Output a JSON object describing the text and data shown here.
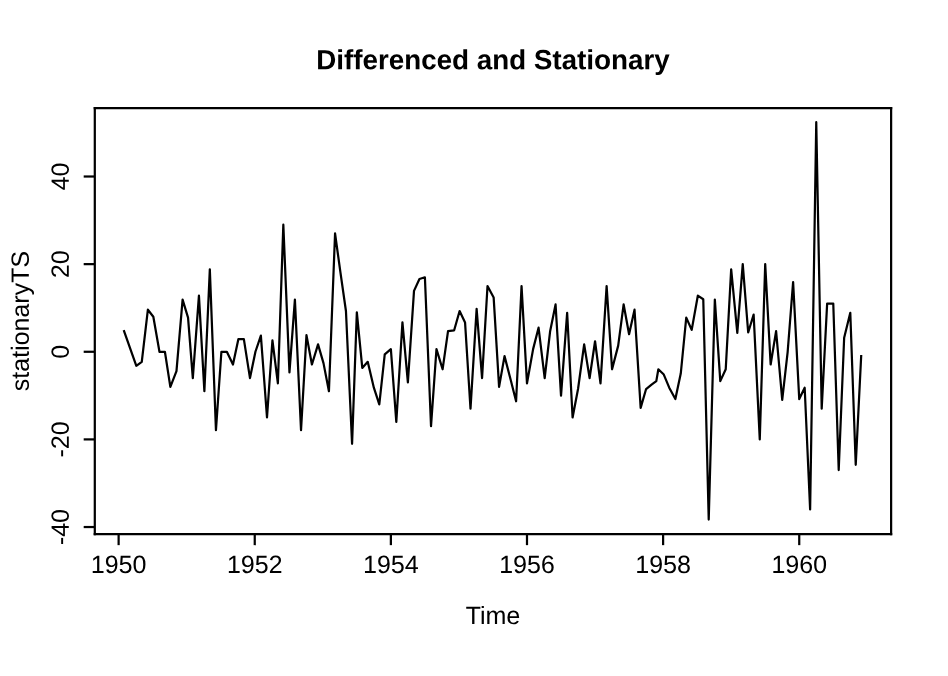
{
  "chart_data": {
    "type": "line",
    "title": "Differenced and Stationary",
    "xlabel": "Time",
    "ylabel": "stationaryTS",
    "x": [
      1950.08,
      1950.26,
      1950.34,
      1950.43,
      1950.51,
      1950.6,
      1950.68,
      1950.76,
      1950.85,
      1950.94,
      1951.02,
      1951.09,
      1951.18,
      1951.26,
      1951.34,
      1951.43,
      1951.51,
      1951.59,
      1951.68,
      1951.76,
      1951.84,
      1951.93,
      1952.01,
      1952.09,
      1952.18,
      1952.26,
      1952.34,
      1952.42,
      1952.51,
      1952.59,
      1952.68,
      1952.76,
      1952.84,
      1952.93,
      1953.01,
      1953.09,
      1953.18,
      1953.26,
      1953.34,
      1953.43,
      1953.5,
      1953.58,
      1953.66,
      1953.75,
      1953.83,
      1953.91,
      1954.0,
      1954.08,
      1954.17,
      1954.25,
      1954.34,
      1954.42,
      1954.5,
      1954.59,
      1954.67,
      1954.76,
      1954.84,
      1954.93,
      1955.01,
      1955.09,
      1955.17,
      1955.26,
      1955.34,
      1955.42,
      1955.51,
      1955.59,
      1955.67,
      1955.76,
      1955.84,
      1955.92,
      1956.0,
      1956.09,
      1956.17,
      1956.26,
      1956.34,
      1956.42,
      1956.5,
      1956.59,
      1956.67,
      1956.75,
      1956.84,
      1956.92,
      1957.0,
      1957.08,
      1957.17,
      1957.25,
      1957.34,
      1957.42,
      1957.5,
      1957.58,
      1957.67,
      1957.75,
      1957.83,
      1957.9,
      1957.93,
      1958.01,
      1958.09,
      1958.18,
      1958.26,
      1958.34,
      1958.42,
      1958.51,
      1958.59,
      1958.67,
      1958.76,
      1958.84,
      1958.92,
      1959.0,
      1959.09,
      1959.17,
      1959.25,
      1959.33,
      1959.42,
      1959.5,
      1959.58,
      1959.66,
      1959.75,
      1959.83,
      1959.91,
      1960.0,
      1960.08,
      1960.16,
      1960.25,
      1960.33,
      1960.41,
      1960.5,
      1960.58,
      1960.66,
      1960.75,
      1960.83,
      1960.91
    ],
    "series": [
      {
        "color": "#000000",
        "values": [
          4.7,
          -3.2,
          -2.3,
          9.6,
          8,
          0,
          0,
          -8,
          -4.4,
          11.9,
          7.8,
          -6,
          12.8,
          -9,
          18.8,
          -17.9,
          0,
          0,
          -2.9,
          2.9,
          2.9,
          -6,
          0,
          3.7,
          -15,
          2.6,
          -7.2,
          29,
          -4.7,
          11.9,
          -17.9,
          3.8,
          -2.9,
          1.7,
          -2.6,
          -9,
          27,
          18,
          9.3,
          -21,
          9,
          -3.7,
          -2.3,
          -8.2,
          -12,
          -0.6,
          0.6,
          -16,
          6.7,
          -7,
          13.9,
          16.6,
          17,
          -17,
          0.6,
          -4,
          4.7,
          4.9,
          9.3,
          6.7,
          -13,
          9.8,
          -6,
          15,
          12.4,
          -8,
          -1,
          -6.4,
          -11.3,
          15,
          -7.2,
          0.6,
          5.5,
          -6,
          4.7,
          10.8,
          -10,
          8.9,
          -15,
          -8.5,
          1.7,
          -6,
          2.4,
          -7.2,
          15,
          -4,
          1.4,
          10.8,
          4,
          9.6,
          -12.8,
          -8.5,
          -7.5,
          -6.7,
          -4,
          -5.2,
          -8.2,
          -10.8,
          -4.9,
          7.8,
          5,
          12.8,
          12,
          -38.3,
          11.9,
          -6.7,
          -4,
          18.8,
          4.3,
          20,
          4.4,
          8.5,
          -20,
          20,
          -2.9,
          4.7,
          -11,
          0,
          15.9,
          -10.8,
          -8.2,
          -36,
          52.4,
          -13,
          11,
          11,
          -27,
          3.2,
          8.9,
          -25.8,
          -1
        ]
      }
    ],
    "xlim": [
      1949.65,
      1961.35
    ],
    "ylim": [
      -41.6,
      55.6
    ],
    "xticks": [
      1950,
      1952,
      1954,
      1956,
      1958,
      1960
    ],
    "yticks": [
      -40,
      -20,
      0,
      20,
      40
    ],
    "grid": false,
    "legend": false,
    "line_style": "solid",
    "marker": "none"
  }
}
